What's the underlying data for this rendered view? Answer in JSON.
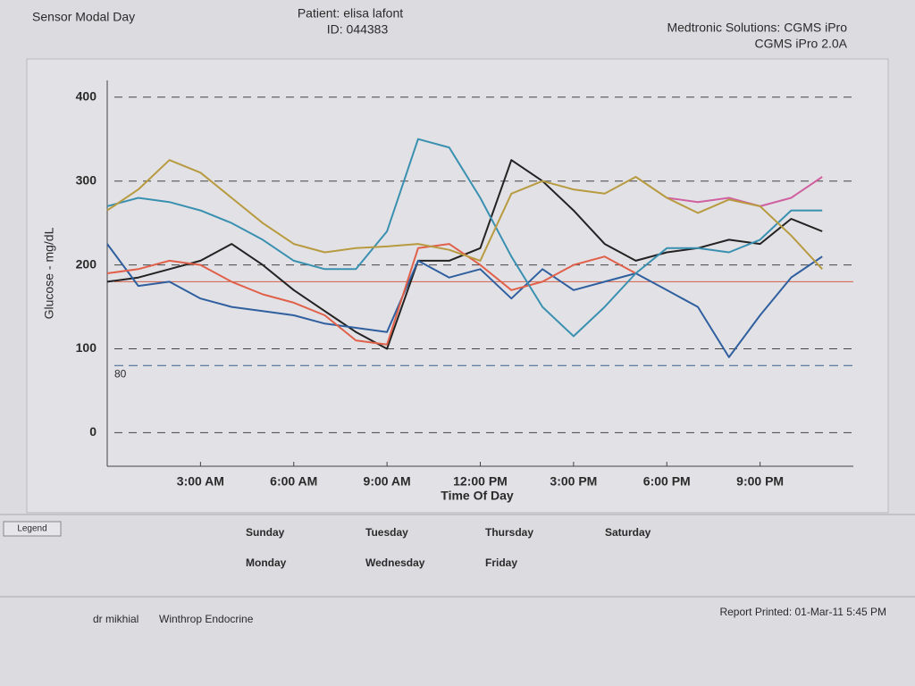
{
  "header": {
    "title": "Sensor Modal Day",
    "patient": "Patient: elisa lafont",
    "id": "ID: 044383",
    "vendor": "Medtronic Solutions: CGMS iPro",
    "version": "CGMS iPro 2.0A"
  },
  "chart_data": {
    "type": "line",
    "x_label": "Time Of Day",
    "y_label": "Glucose - mg/dL",
    "x": [
      0,
      1,
      2,
      3,
      4,
      5,
      6,
      7,
      8,
      9,
      10,
      11,
      12,
      13,
      14,
      15,
      16,
      17,
      18,
      19,
      20,
      21,
      22,
      23
    ],
    "xlim": [
      0,
      24
    ],
    "ylim": [
      -40,
      420
    ],
    "xticks": [
      {
        "value": 3,
        "label": "3:00 AM"
      },
      {
        "value": 6,
        "label": "6:00 AM"
      },
      {
        "value": 9,
        "label": "9:00 AM"
      },
      {
        "value": 12,
        "label": "12:00 PM"
      },
      {
        "value": 15,
        "label": "3:00 PM"
      },
      {
        "value": 18,
        "label": "6:00 PM"
      },
      {
        "value": 21,
        "label": "9:00 PM"
      }
    ],
    "yticks": [
      0,
      100,
      200,
      300,
      400
    ],
    "grid": true,
    "reference_lines": [
      {
        "value": 80,
        "label": "80",
        "color": "#3a5f8a"
      },
      {
        "value": 180,
        "color": "#d0604a"
      }
    ],
    "series": [
      {
        "name": "Sunday",
        "color": "#222222",
        "values": [
          180,
          185,
          195,
          205,
          225,
          200,
          170,
          145,
          120,
          100,
          205,
          205,
          220,
          325,
          300,
          265,
          225,
          205,
          215,
          220,
          230,
          225,
          255,
          240
        ]
      },
      {
        "name": "Monday",
        "color": "#2f5f9f",
        "values": [
          225,
          175,
          180,
          160,
          150,
          145,
          140,
          130,
          125,
          120,
          205,
          185,
          195,
          160,
          195,
          170,
          180,
          190,
          170,
          150,
          90,
          140,
          185,
          210
        ]
      },
      {
        "name": "Tuesday",
        "color": "#e0604a",
        "values": [
          190,
          195,
          205,
          200,
          180,
          165,
          155,
          140,
          110,
          105,
          220,
          225,
          200,
          170,
          180,
          200,
          210,
          190,
          null,
          null,
          null,
          null,
          null,
          null
        ]
      },
      {
        "name": "Wednesday",
        "color": "#7aa060",
        "values": [
          null,
          null,
          null,
          null,
          null,
          null,
          null,
          null,
          null,
          null,
          null,
          null,
          null,
          null,
          null,
          null,
          null,
          null,
          null,
          null,
          null,
          null,
          null,
          null
        ]
      },
      {
        "name": "Thursday",
        "color": "#d060a0",
        "values": [
          null,
          null,
          null,
          null,
          null,
          null,
          null,
          null,
          null,
          null,
          null,
          null,
          null,
          null,
          null,
          null,
          null,
          null,
          280,
          275,
          280,
          270,
          280,
          305
        ]
      },
      {
        "name": "Friday",
        "color": "#3a90b0",
        "values": [
          270,
          280,
          275,
          265,
          250,
          230,
          205,
          195,
          195,
          240,
          350,
          340,
          280,
          210,
          150,
          115,
          150,
          190,
          220,
          220,
          215,
          230,
          265,
          265
        ]
      },
      {
        "name": "Saturday",
        "color": "#b89a40",
        "values": [
          265,
          290,
          325,
          310,
          280,
          250,
          225,
          215,
          220,
          222,
          225,
          218,
          205,
          285,
          300,
          290,
          285,
          305,
          280,
          262,
          278,
          270,
          235,
          195
        ]
      }
    ]
  },
  "legend_title": "Legend",
  "footer": {
    "doctor": "dr mikhial",
    "clinic": "Winthrop Endocrine",
    "printed": "Report Printed: 01-Mar-11  5:45 PM"
  }
}
